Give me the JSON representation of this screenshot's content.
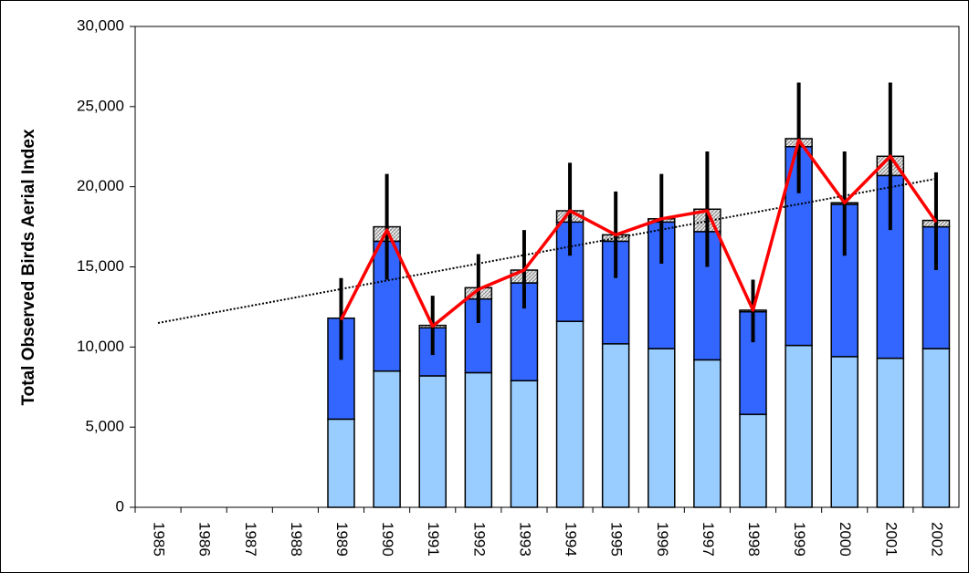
{
  "chart_data": {
    "type": "bar",
    "y_label": "Total Observed Birds Aerial Index",
    "categories": [
      "1985",
      "1986",
      "1987",
      "1988",
      "1989",
      "1990",
      "1991",
      "1992",
      "1993",
      "1994",
      "1995",
      "1996",
      "1997",
      "1998",
      "1999",
      "2000",
      "2001",
      "2002"
    ],
    "ylim": [
      0,
      30000
    ],
    "yticks": [
      0,
      {
        "value": 5000,
        "label": "5,000"
      },
      {
        "value": 10000,
        "label": "10,000"
      },
      {
        "value": 15000,
        "label": "15,000"
      },
      {
        "value": 20000,
        "label": "20,000"
      },
      {
        "value": 25000,
        "label": "25,000"
      },
      {
        "value": 30000,
        "label": "30,000"
      }
    ],
    "series": [
      {
        "color": "#99ccff",
        "values": [
          null,
          null,
          null,
          null,
          5500,
          8500,
          8200,
          8400,
          7900,
          11600,
          10200,
          9900,
          9200,
          5800,
          10100,
          9400,
          9300,
          9900
        ]
      },
      {
        "color": "#3366ff",
        "values": [
          null,
          null,
          null,
          null,
          6300,
          8100,
          3000,
          4600,
          6100,
          6200,
          6400,
          7900,
          8000,
          6400,
          12400,
          9500,
          11400,
          7600
        ]
      },
      {
        "color": "hatch",
        "values": [
          null,
          null,
          null,
          null,
          0,
          900,
          150,
          700,
          800,
          700,
          400,
          200,
          1400,
          100,
          500,
          100,
          1200,
          400
        ]
      }
    ],
    "line": {
      "color": "#ff0000",
      "values": [
        null,
        null,
        null,
        null,
        11700,
        17300,
        11300,
        13600,
        14800,
        18500,
        17000,
        18000,
        18500,
        12300,
        22900,
        19000,
        21900,
        17800
      ]
    },
    "error_low": [
      null,
      null,
      null,
      null,
      9200,
      14200,
      9500,
      11500,
      12400,
      15700,
      14300,
      15200,
      15000,
      10300,
      19600,
      15700,
      17300,
      14800
    ],
    "error_high": [
      null,
      null,
      null,
      null,
      14300,
      20800,
      13200,
      15800,
      17300,
      21500,
      19700,
      20800,
      22200,
      14200,
      26500,
      22200,
      26500,
      20900
    ],
    "trend": {
      "values": [
        11500,
        20500
      ]
    }
  }
}
